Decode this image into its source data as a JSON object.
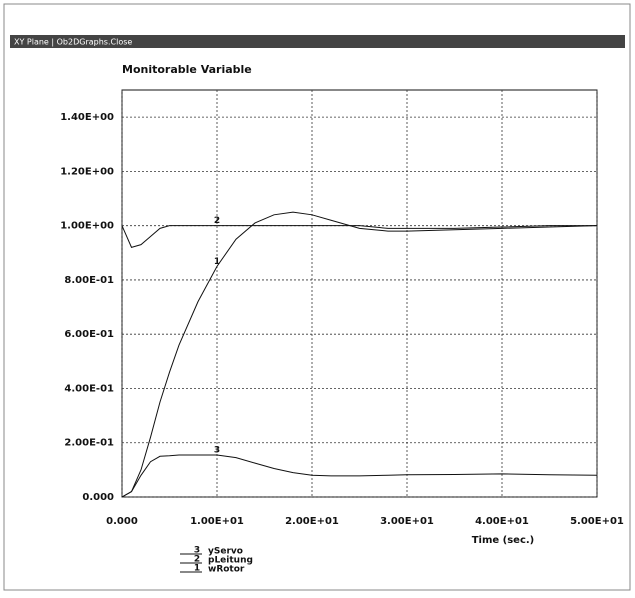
{
  "window": {
    "title": "XY Plane | Ob2DGraphs.Close"
  },
  "chart_data": {
    "type": "line",
    "title": "Monitorable Variable",
    "x_label": "Time (sec.)",
    "x": [
      0,
      1,
      2,
      3,
      4,
      5,
      6,
      8,
      10,
      12,
      14,
      16,
      18,
      20,
      22,
      25,
      28,
      30,
      35,
      40,
      45,
      50
    ],
    "series": [
      {
        "name": "wRotor",
        "label": "1",
        "color": "#111111",
        "values": [
          0,
          0.02,
          0.1,
          0.22,
          0.35,
          0.46,
          0.56,
          0.72,
          0.85,
          0.95,
          1.01,
          1.04,
          1.05,
          1.04,
          1.02,
          0.99,
          0.98,
          0.98,
          0.985,
          0.99,
          0.995,
          1.0
        ]
      },
      {
        "name": "pLeitung",
        "label": "2",
        "color": "#111111",
        "values": [
          1.0,
          0.92,
          0.93,
          0.96,
          0.99,
          1.0,
          1.0,
          1.0,
          1.0,
          1.0,
          1.0,
          1.0,
          1.0,
          1.0,
          1.0,
          1.0,
          0.99,
          0.99,
          0.99,
          0.995,
          1.0,
          1.0
        ]
      },
      {
        "name": "yServo",
        "label": "3",
        "color": "#111111",
        "values": [
          0,
          0.02,
          0.08,
          0.13,
          0.15,
          0.152,
          0.155,
          0.155,
          0.155,
          0.145,
          0.125,
          0.105,
          0.09,
          0.08,
          0.078,
          0.078,
          0.08,
          0.082,
          0.083,
          0.085,
          0.082,
          0.08
        ]
      }
    ],
    "xlim": [
      0,
      50
    ],
    "xticks": [
      {
        "value": 0,
        "label": "0.000"
      },
      {
        "value": 10,
        "label": "1.00E+01"
      },
      {
        "value": 20,
        "label": "2.00E+01"
      },
      {
        "value": 30,
        "label": "3.00E+01"
      },
      {
        "value": 40,
        "label": "4.00E+01"
      },
      {
        "value": 50,
        "label": "5.00E+01"
      }
    ],
    "ylim": [
      0,
      1.5
    ],
    "yticks": [
      {
        "value": 0,
        "label": "0.000"
      },
      {
        "value": 0.2,
        "label": "2.00E-01"
      },
      {
        "value": 0.4,
        "label": "4.00E-01"
      },
      {
        "value": 0.6,
        "label": "6.00E-01"
      },
      {
        "value": 0.8,
        "label": "8.00E-01"
      },
      {
        "value": 1.0,
        "label": "1.00E+00"
      },
      {
        "value": 1.2,
        "label": "1.20E+00"
      },
      {
        "value": 1.4,
        "label": "1.40E+00"
      }
    ],
    "grid": true
  }
}
